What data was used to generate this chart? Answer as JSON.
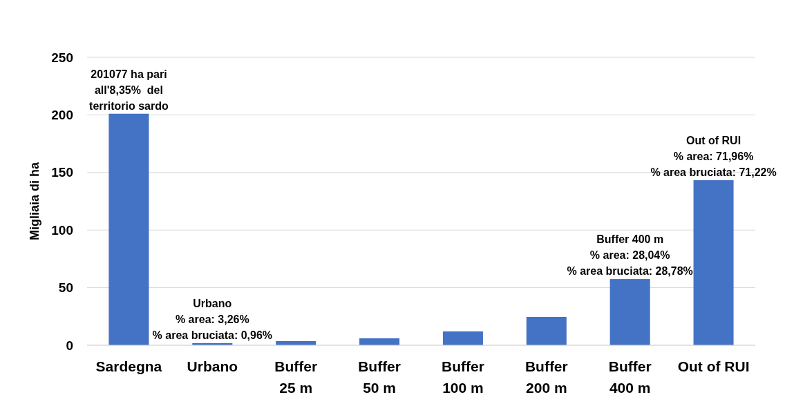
{
  "chart_data": {
    "type": "bar",
    "ylabel": "Migliaia di ha",
    "categories": [
      "Sardegna",
      "Urbano",
      "Buffer 25 m",
      "Buffer 50 m",
      "Buffer 100 m",
      "Buffer 200 m",
      "Buffer 400 m",
      "Out of RUI"
    ],
    "values": [
      201,
      1.8,
      3.6,
      6,
      12,
      24.6,
      57.5,
      143.3
    ],
    "color": "#4472c4",
    "ylim": [
      0,
      250
    ],
    "yticks": [
      0,
      50,
      100,
      150,
      200,
      250
    ],
    "grid": "y",
    "annotations": [
      {
        "text": "201077 ha pari\nall'8,35%  del\nterritorio sardo",
        "x": "Sardegna",
        "y": 201
      },
      {
        "text": "Urbano\n% area: 3,26%\n% area bruciata: 0,96%",
        "x": "Urbano",
        "y": 1.8
      },
      {
        "text": "Buffer 400 m\n% area: 28,04%\n% area bruciata: 28,78%",
        "x": "Buffer 400 m",
        "y": 57.5
      },
      {
        "text": "Out of RUI\n% area: 71,96%\n% area bruciata: 71,22%",
        "x": "Out of RUI",
        "y": 143.3
      }
    ]
  }
}
